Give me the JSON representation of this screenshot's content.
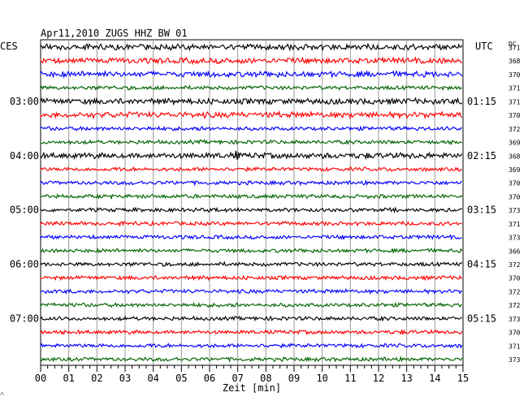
{
  "header": {
    "title": "Apr11,2010   ZUGS HHZ BW 01",
    "left_zone": "CES",
    "right_zone": "UTC",
    "dc_label": "DC"
  },
  "axis": {
    "xlabel": "Zeit [min]",
    "corner_mark": "˄"
  },
  "colors": {
    "trace_cycle": [
      "#000000",
      "#ff0000",
      "#0000ff",
      "#006400"
    ],
    "grid": "#9a9a9a",
    "frame": "#000000"
  },
  "chart_data": {
    "type": "line",
    "description_kind": "helicorder",
    "x_unit": "min",
    "xlim": [
      0,
      15
    ],
    "x_ticks": [
      "00",
      "01",
      "02",
      "03",
      "04",
      "05",
      "06",
      "07",
      "08",
      "09",
      "10",
      "11",
      "12",
      "13",
      "14",
      "15"
    ],
    "minor_ticks_per_minute": 4,
    "rows": 24,
    "rows_per_hour": 4,
    "left_hour_labels": [
      "03:00",
      "04:00",
      "05:00",
      "06:00",
      "07:00"
    ],
    "right_hour_labels": [
      "01:15",
      "02:15",
      "03:15",
      "04:15",
      "05:15"
    ],
    "hour_label_rows": [
      4,
      8,
      12,
      16,
      20
    ],
    "dc_values": [
      "371",
      "368",
      "370",
      "371",
      "371",
      "370",
      "372",
      "369",
      "368",
      "369",
      "370",
      "370",
      "373",
      "371",
      "373",
      "366",
      "372",
      "370",
      "372",
      "372",
      "373",
      "370",
      "371",
      "373"
    ],
    "trace_amplitude_px": [
      3,
      3,
      3,
      2,
      3,
      3,
      2,
      2,
      3,
      2,
      2,
      2,
      2,
      2,
      2,
      2,
      2,
      2,
      2,
      2,
      2,
      2,
      2,
      2
    ]
  }
}
